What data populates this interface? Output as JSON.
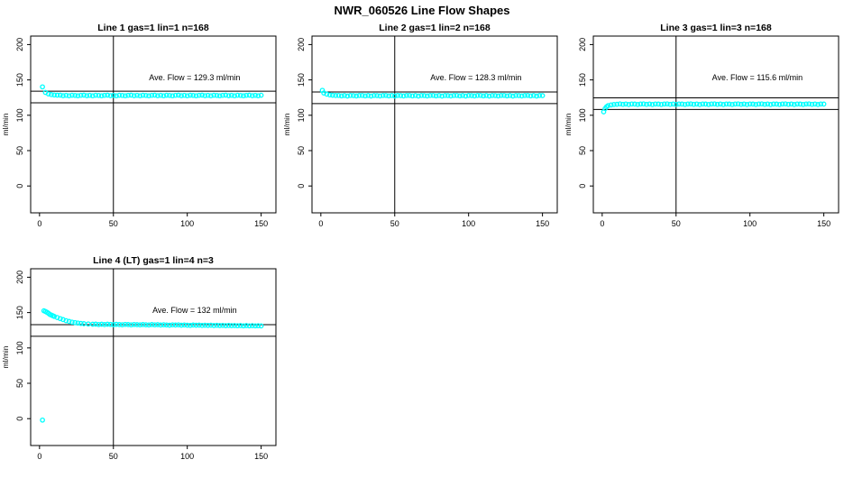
{
  "page_title": "NWR_060526  Line Flow Shapes",
  "colors": {
    "point_color": "#00ffff",
    "line_color": "#000000",
    "text_color": "#000000",
    "background": "#ffffff"
  },
  "chart_data": [
    {
      "type": "scatter",
      "title": "Line 1 gas=1 lin=1 n=168",
      "ylabel": "ml/min",
      "xlabel": "",
      "xlim": [
        0,
        150
      ],
      "ylim": [
        0,
        200
      ],
      "xticks": [
        0,
        50,
        100,
        150
      ],
      "yticks": [
        0,
        50,
        100,
        150,
        200
      ],
      "grid": false,
      "vline": 50,
      "hlines": [
        134.1,
        117.6
      ],
      "ave_flow": 129.3,
      "annotation": "Ave. Flow =  129.3  ml/min",
      "x": [
        2,
        4,
        6,
        8,
        10,
        12,
        14,
        16,
        18,
        20,
        22,
        24,
        26,
        28,
        30,
        32,
        34,
        36,
        38,
        40,
        42,
        44,
        46,
        48,
        50,
        52,
        54,
        56,
        58,
        60,
        62,
        64,
        66,
        68,
        70,
        72,
        74,
        76,
        78,
        80,
        82,
        84,
        86,
        88,
        90,
        92,
        94,
        96,
        98,
        100,
        102,
        104,
        106,
        108,
        110,
        112,
        114,
        116,
        118,
        120,
        122,
        124,
        126,
        128,
        130,
        132,
        134,
        136,
        138,
        140,
        142,
        144,
        146,
        148,
        150
      ],
      "y": [
        140.2,
        132.3,
        130.2,
        129.2,
        128.7,
        128.4,
        128.4,
        127.7,
        128.2,
        127.5,
        128.3,
        128.1,
        127.6,
        128.2,
        128.4,
        127.7,
        128.2,
        127.5,
        128.3,
        128.1,
        127.6,
        128.2,
        128.4,
        127.7,
        128.2,
        127.5,
        128.3,
        128.1,
        127.6,
        128.2,
        128.4,
        127.7,
        128.2,
        127.5,
        128.3,
        128.1,
        127.6,
        128.2,
        128.4,
        127.7,
        128.2,
        127.5,
        128.3,
        128.1,
        127.6,
        128.2,
        128.4,
        127.7,
        128.2,
        127.5,
        128.3,
        128.1,
        127.6,
        128.2,
        128.4,
        127.7,
        128.2,
        127.5,
        128.3,
        128.1,
        127.6,
        128.2,
        128.4,
        127.7,
        128.2,
        127.5,
        128.3,
        128.1,
        127.6,
        128.2,
        128.4,
        127.7,
        128.2,
        127.5,
        128.3
      ]
    },
    {
      "type": "scatter",
      "title": "Line 2 gas=1 lin=2 n=168",
      "ylabel": "ml/min",
      "xlabel": "",
      "xlim": [
        0,
        150
      ],
      "ylim": [
        0,
        200
      ],
      "xticks": [
        0,
        50,
        100,
        150
      ],
      "yticks": [
        0,
        50,
        100,
        150,
        200
      ],
      "grid": false,
      "vline": 50,
      "hlines": [
        132.9,
        116.5
      ],
      "ave_flow": 128.3,
      "annotation": "Ave. Flow =  128.3  ml/min",
      "x": [
        1,
        2,
        4,
        6,
        8,
        10,
        12,
        14,
        16,
        18,
        20,
        22,
        24,
        26,
        28,
        30,
        32,
        34,
        36,
        38,
        40,
        42,
        44,
        46,
        48,
        50,
        52,
        54,
        56,
        58,
        60,
        62,
        64,
        66,
        68,
        70,
        72,
        74,
        76,
        78,
        80,
        82,
        84,
        86,
        88,
        90,
        92,
        94,
        96,
        98,
        100,
        102,
        104,
        106,
        108,
        110,
        112,
        114,
        116,
        118,
        120,
        122,
        124,
        126,
        128,
        130,
        132,
        134,
        136,
        138,
        140,
        142,
        144,
        146,
        148,
        150
      ],
      "y": [
        135.2,
        131.5,
        129.8,
        128.9,
        128.3,
        128.0,
        128.1,
        127.4,
        127.9,
        127.2,
        128.0,
        127.8,
        127.3,
        127.9,
        128.1,
        127.4,
        127.9,
        127.2,
        128.0,
        127.8,
        127.3,
        127.9,
        128.1,
        127.4,
        127.9,
        127.2,
        128.0,
        127.8,
        127.3,
        127.9,
        128.1,
        127.4,
        127.9,
        127.2,
        128.0,
        127.8,
        127.3,
        127.9,
        128.1,
        127.4,
        127.9,
        127.2,
        128.0,
        127.8,
        127.3,
        127.9,
        128.1,
        127.4,
        127.9,
        127.2,
        128.0,
        127.8,
        127.3,
        127.9,
        128.1,
        127.4,
        127.9,
        127.2,
        128.0,
        127.8,
        127.3,
        127.9,
        128.1,
        127.4,
        127.9,
        127.2,
        128.0,
        127.8,
        127.3,
        127.9,
        128.1,
        127.4,
        127.9,
        127.2,
        128.0,
        127.8
      ]
    },
    {
      "type": "scatter",
      "title": "Line 3 gas=1 lin=3 n=168",
      "ylabel": "ml/min",
      "xlabel": "",
      "xlim": [
        0,
        150
      ],
      "ylim": [
        0,
        200
      ],
      "xticks": [
        0,
        50,
        100,
        150
      ],
      "yticks": [
        0,
        50,
        100,
        150,
        200
      ],
      "grid": false,
      "vline": 50,
      "hlines": [
        124.7,
        108.2
      ],
      "ave_flow": 115.6,
      "annotation": "Ave. Flow =  115.6  ml/min",
      "x": [
        1,
        2,
        3,
        4,
        6,
        8,
        10,
        12,
        14,
        16,
        18,
        20,
        22,
        24,
        26,
        28,
        30,
        32,
        34,
        36,
        38,
        40,
        42,
        44,
        46,
        48,
        50,
        52,
        54,
        56,
        58,
        60,
        62,
        64,
        66,
        68,
        70,
        72,
        74,
        76,
        78,
        80,
        82,
        84,
        86,
        88,
        90,
        92,
        94,
        96,
        98,
        100,
        102,
        104,
        106,
        108,
        110,
        112,
        114,
        116,
        118,
        120,
        122,
        124,
        126,
        128,
        130,
        132,
        134,
        136,
        138,
        140,
        142,
        144,
        146,
        148,
        150
      ],
      "y": [
        104.8,
        109.5,
        112.0,
        113.6,
        114.7,
        115.3,
        115.6,
        116.1,
        115.4,
        115.9,
        115.2,
        116.0,
        115.8,
        115.3,
        115.9,
        116.1,
        115.4,
        115.9,
        115.2,
        116.0,
        115.8,
        115.3,
        115.9,
        116.1,
        115.4,
        115.9,
        115.2,
        116.0,
        115.8,
        115.3,
        115.9,
        116.1,
        115.4,
        115.9,
        115.2,
        116.0,
        115.8,
        115.3,
        115.9,
        116.1,
        115.4,
        115.9,
        115.2,
        116.0,
        115.8,
        115.3,
        115.9,
        116.1,
        115.4,
        115.9,
        115.2,
        116.0,
        115.8,
        115.3,
        115.9,
        116.1,
        115.4,
        115.9,
        115.2,
        116.0,
        115.8,
        115.3,
        115.9,
        116.1,
        115.4,
        115.9,
        115.2,
        116.0,
        115.8,
        115.3,
        115.9,
        116.1,
        115.4,
        115.9,
        115.2,
        116.0,
        115.8
      ]
    },
    {
      "type": "scatter",
      "title": "Line 4 (LT) gas=1 lin=4 n=3",
      "ylabel": "ml/min",
      "xlabel": "",
      "xlim": [
        0,
        150
      ],
      "ylim": [
        0,
        200
      ],
      "xticks": [
        0,
        50,
        100,
        150
      ],
      "yticks": [
        0,
        50,
        100,
        150,
        200
      ],
      "grid": false,
      "vline": 50,
      "hlines": [
        132.9,
        116.5
      ],
      "ave_flow": 132,
      "annotation": "Ave. Flow =  132  ml/min",
      "x": [
        2,
        3,
        4,
        5,
        6,
        7,
        8,
        9,
        10,
        12,
        14,
        16,
        18,
        20,
        22,
        24,
        26,
        28,
        30,
        33,
        36,
        38,
        40,
        42,
        44,
        46,
        48,
        50,
        52,
        54,
        56,
        58,
        60,
        62,
        64,
        66,
        68,
        70,
        72,
        74,
        76,
        78,
        80,
        82,
        84,
        86,
        88,
        90,
        92,
        94,
        96,
        98,
        100,
        102,
        104,
        106,
        108,
        110,
        112,
        114,
        116,
        118,
        120,
        122,
        124,
        126,
        128,
        130,
        132,
        134,
        136,
        138,
        140,
        142,
        144,
        146,
        148,
        150
      ],
      "y": [
        -2.0,
        152.5,
        151.5,
        150.5,
        149.0,
        147.5,
        146.5,
        145.5,
        144.5,
        143.0,
        141.5,
        140.0,
        138.5,
        137.5,
        136.5,
        135.8,
        135.2,
        134.7,
        134.3,
        133.9,
        133.6,
        133.7,
        133.2,
        133.5,
        133.0,
        133.6,
        133.3,
        132.9,
        133.4,
        133.1,
        132.8,
        133.3,
        133.0,
        132.7,
        133.2,
        132.9,
        132.6,
        133.1,
        132.8,
        132.5,
        133.0,
        132.7,
        132.9,
        132.4,
        132.8,
        132.5,
        132.2,
        132.7,
        132.4,
        132.6,
        132.1,
        132.5,
        132.2,
        131.9,
        132.4,
        132.1,
        132.3,
        131.8,
        132.2,
        131.9,
        132.1,
        131.7,
        132.0,
        131.7,
        131.9,
        131.5,
        131.8,
        131.5,
        131.7,
        131.4,
        131.6,
        131.3,
        131.6,
        131.2,
        131.5,
        131.2,
        131.4,
        131.1
      ]
    }
  ]
}
